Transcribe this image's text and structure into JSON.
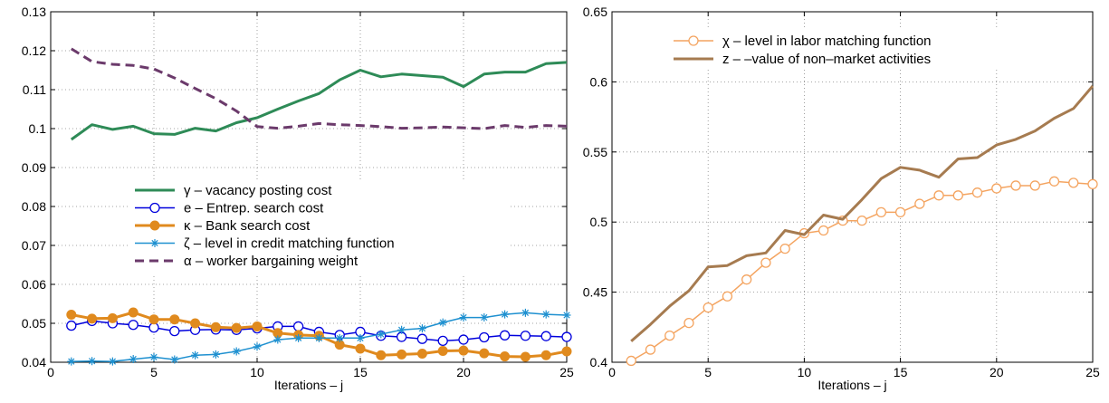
{
  "chart_data": [
    {
      "type": "line",
      "xlabel": "Iterations – j",
      "ylabel": "",
      "xlim": [
        0,
        25
      ],
      "ylim": [
        0.04,
        0.13
      ],
      "xticks": [
        0,
        5,
        10,
        15,
        20,
        25
      ],
      "yticks": [
        0.04,
        0.05,
        0.06,
        0.07,
        0.08,
        0.09,
        0.1,
        0.11,
        0.12,
        0.13
      ],
      "ytick_labels": [
        "0.04",
        "0.05",
        "0.06",
        "0.07",
        "0.08",
        "0.09",
        "0.1",
        "0.11",
        "0.12",
        "0.13"
      ],
      "grid": true,
      "legend_position": "center-left",
      "x": [
        1,
        2,
        3,
        4,
        5,
        6,
        7,
        8,
        9,
        10,
        11,
        12,
        13,
        14,
        15,
        16,
        17,
        18,
        19,
        20,
        21,
        22,
        23,
        24,
        25
      ],
      "series": [
        {
          "name": "γ – vacancy posting cost",
          "color": "#2e8b57",
          "marker": "none",
          "dash": "solid",
          "width": 3,
          "values": [
            0.0972,
            0.101,
            0.0998,
            0.1006,
            0.0987,
            0.0985,
            0.1001,
            0.0994,
            0.1015,
            0.1028,
            0.105,
            0.1071,
            0.109,
            0.1125,
            0.115,
            0.1133,
            0.114,
            0.1136,
            0.1132,
            0.1108,
            0.114,
            0.1145,
            0.1145,
            0.1167,
            0.117
          ]
        },
        {
          "name": "e – Entrep. search cost",
          "color": "#0000dd",
          "marker": "circle-open",
          "dash": "solid",
          "width": 1.5,
          "values": [
            0.0494,
            0.0506,
            0.05,
            0.0496,
            0.0489,
            0.048,
            0.0483,
            0.0484,
            0.0483,
            0.0487,
            0.0492,
            0.0492,
            0.0478,
            0.047,
            0.0478,
            0.0468,
            0.0465,
            0.046,
            0.0455,
            0.0458,
            0.0464,
            0.0469,
            0.0468,
            0.0467,
            0.0465
          ]
        },
        {
          "name": "κ – Bank search cost",
          "color": "#e08a1e",
          "marker": "circle-filled",
          "dash": "solid",
          "width": 3,
          "values": [
            0.0522,
            0.0512,
            0.0513,
            0.0528,
            0.051,
            0.051,
            0.05,
            0.049,
            0.0488,
            0.0492,
            0.0475,
            0.047,
            0.0468,
            0.0445,
            0.0435,
            0.0418,
            0.042,
            0.0422,
            0.0429,
            0.043,
            0.0423,
            0.0415,
            0.0414,
            0.0418,
            0.0428
          ]
        },
        {
          "name": "ζ – level in credit matching function",
          "color": "#1e90d0",
          "marker": "star",
          "dash": "solid",
          "width": 1.5,
          "values": [
            0.0402,
            0.0403,
            0.0402,
            0.0408,
            0.0413,
            0.0407,
            0.0418,
            0.042,
            0.0428,
            0.044,
            0.0458,
            0.0462,
            0.0462,
            0.0462,
            0.0462,
            0.0472,
            0.0483,
            0.0487,
            0.0502,
            0.0515,
            0.0515,
            0.0523,
            0.0527,
            0.0523,
            0.0521
          ]
        },
        {
          "name": "α – worker bargaining weight",
          "color": "#6b3a6b",
          "marker": "none",
          "dash": "dashed",
          "width": 3,
          "values": [
            0.1205,
            0.1172,
            0.1165,
            0.1162,
            0.1153,
            0.113,
            0.1103,
            0.1077,
            0.1045,
            0.1005,
            0.1001,
            0.1006,
            0.1013,
            0.101,
            0.1008,
            0.1005,
            0.1001,
            0.1002,
            0.1004,
            0.1002,
            0.1,
            0.1008,
            0.1003,
            0.1008,
            0.1006
          ]
        }
      ]
    },
    {
      "type": "line",
      "xlabel": "Iterations – j",
      "ylabel": "",
      "xlim": [
        0,
        25
      ],
      "ylim": [
        0.4,
        0.65
      ],
      "xticks": [
        0,
        5,
        10,
        15,
        20,
        25
      ],
      "yticks": [
        0.4,
        0.45,
        0.5,
        0.55,
        0.6,
        0.65
      ],
      "ytick_labels": [
        "0.4",
        "0.45",
        "0.5",
        "0.55",
        "0.6",
        "0.65"
      ],
      "grid": true,
      "legend_position": "top-right",
      "x": [
        1,
        2,
        3,
        4,
        5,
        6,
        7,
        8,
        9,
        10,
        11,
        12,
        13,
        14,
        15,
        16,
        17,
        18,
        19,
        20,
        21,
        22,
        23,
        24,
        25
      ],
      "series": [
        {
          "name": "χ – level in labor matching function",
          "color": "#f4a460",
          "marker": "circle-open",
          "dash": "solid",
          "width": 1.5,
          "values": [
            0.401,
            0.409,
            0.419,
            0.428,
            0.439,
            0.447,
            0.459,
            0.471,
            0.481,
            0.492,
            0.494,
            0.501,
            0.501,
            0.507,
            0.507,
            0.513,
            0.519,
            0.519,
            0.521,
            0.524,
            0.526,
            0.526,
            0.529,
            0.528,
            0.527
          ]
        },
        {
          "name": "z – –value of non–market activities",
          "color": "#a67b50",
          "marker": "none",
          "dash": "solid",
          "width": 3,
          "values": [
            0.415,
            0.427,
            0.44,
            0.451,
            0.468,
            0.469,
            0.476,
            0.478,
            0.494,
            0.491,
            0.505,
            0.502,
            0.516,
            0.531,
            0.539,
            0.537,
            0.532,
            0.545,
            0.546,
            0.555,
            0.559,
            0.565,
            0.574,
            0.581,
            0.597
          ]
        }
      ]
    }
  ]
}
